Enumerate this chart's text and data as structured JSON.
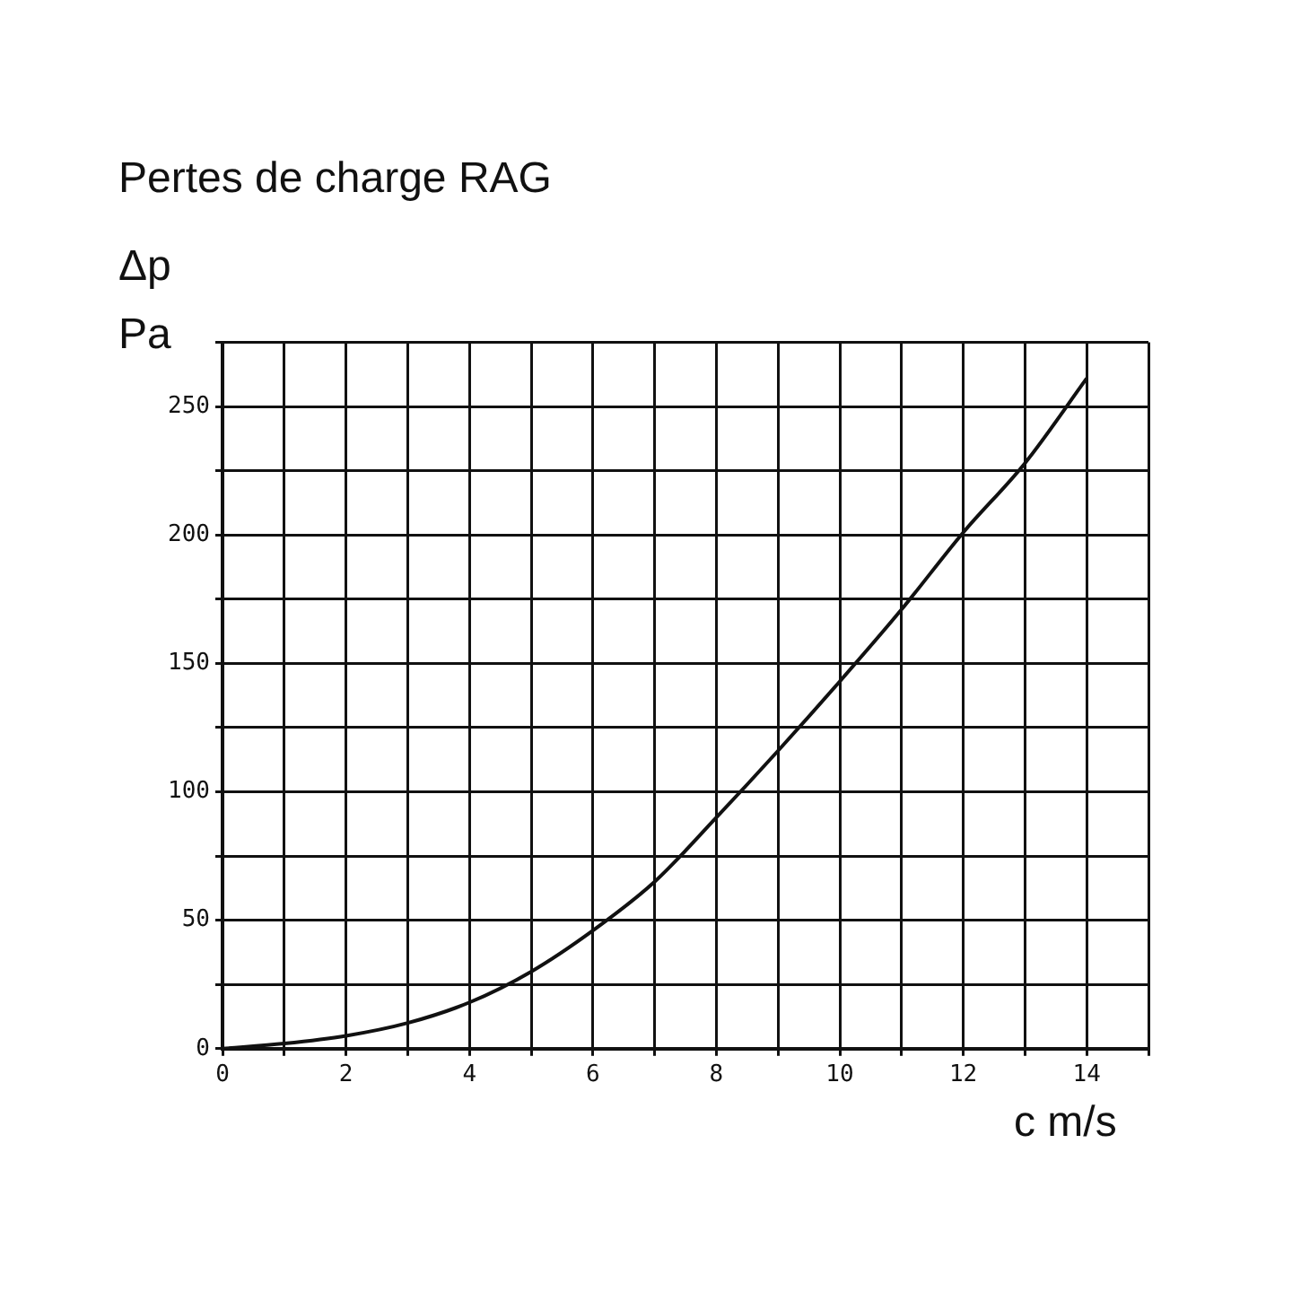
{
  "chart_data": {
    "type": "line",
    "title": "Pertes de charge RAG",
    "ylabel": "Δp\nPa",
    "xlabel": "c m/s",
    "x": [
      0,
      1,
      2,
      3,
      4,
      5,
      6,
      7,
      8,
      9,
      10,
      11,
      12,
      13,
      14
    ],
    "series": [
      {
        "color": "#111111",
        "values": [
          0,
          2,
          5,
          10,
          18,
          30,
          46,
          65,
          90,
          116,
          143,
          171,
          201,
          228,
          261
        ]
      }
    ],
    "xlim": [
      0,
      15
    ],
    "xticks": [
      0,
      {
        "value": 1,
        "label": null
      },
      2,
      {
        "value": 3,
        "label": null
      },
      4,
      {
        "value": 5,
        "label": null
      },
      6,
      {
        "value": 7,
        "label": null
      },
      8,
      {
        "value": 9,
        "label": null
      },
      10,
      {
        "value": 11,
        "label": null
      },
      12,
      {
        "value": 13,
        "label": null
      },
      14,
      {
        "value": 15,
        "label": null
      }
    ],
    "ylim": [
      0,
      275
    ],
    "yticks": [
      0,
      {
        "value": 25,
        "label": null
      },
      50,
      {
        "value": 75,
        "label": null
      },
      100,
      {
        "value": 125,
        "label": null
      },
      150,
      {
        "value": 175,
        "label": null
      },
      200,
      {
        "value": 225,
        "label": null
      },
      250,
      {
        "value": 275,
        "label": null
      }
    ],
    "grid": true,
    "legend": false,
    "marker": "none",
    "line_style": "solid"
  }
}
